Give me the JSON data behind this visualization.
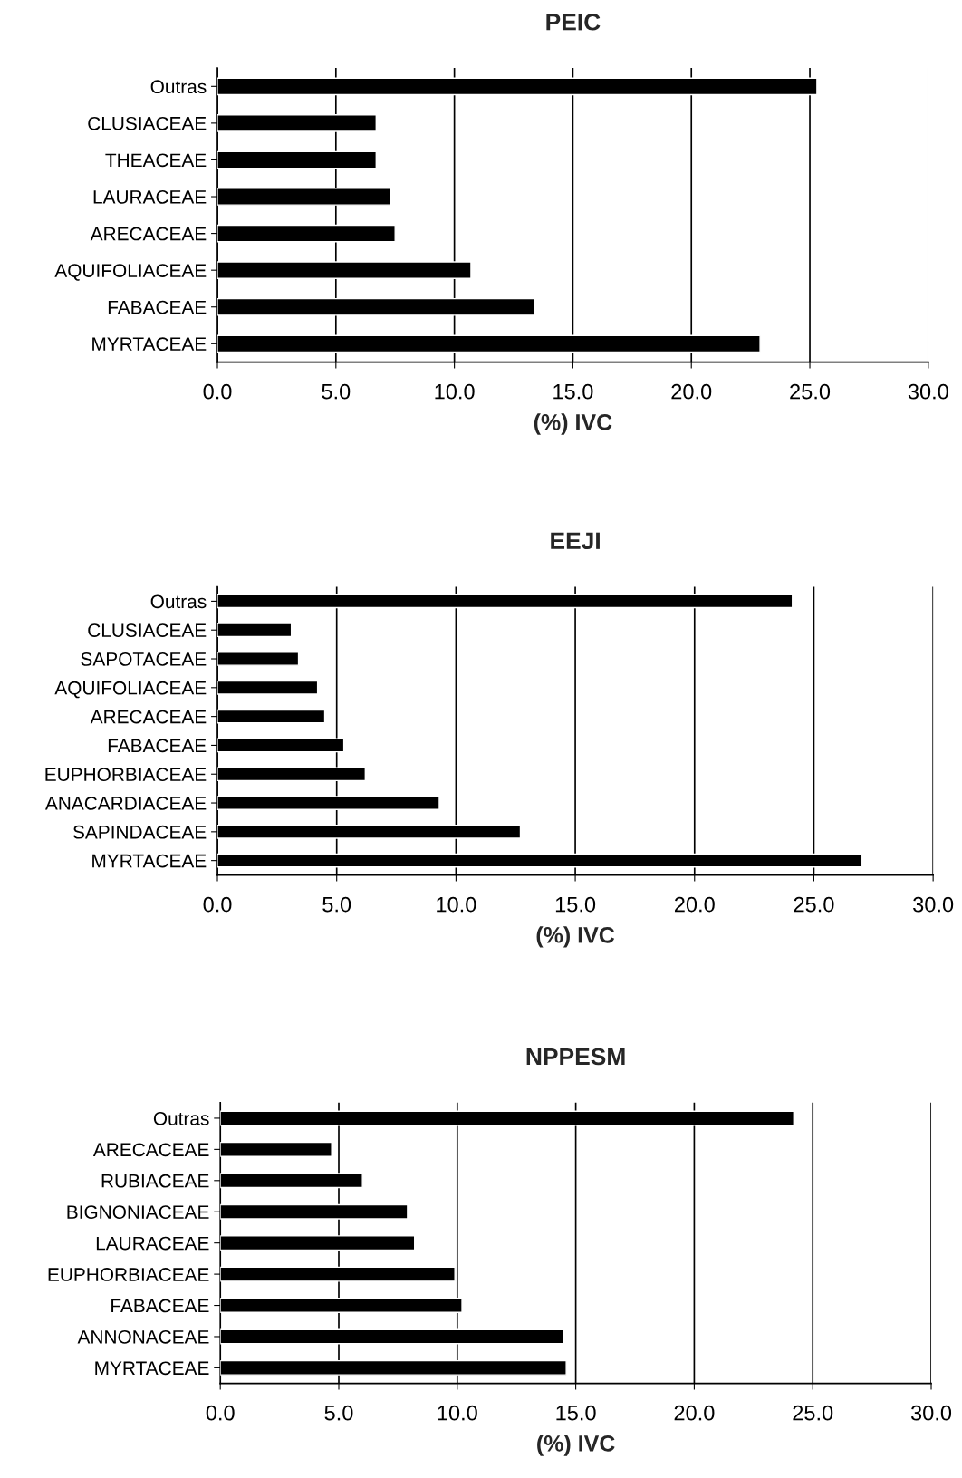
{
  "chart_data": [
    {
      "type": "bar",
      "orientation": "horizontal",
      "title": "PEIC",
      "xlabel": "(%) IVC",
      "categories": [
        "Outras",
        "CLUSIACEAE",
        "THEACEAE",
        "LAURACEAE",
        "ARECACEAE",
        "AQUIFOLIACEAE",
        "FABACEAE",
        "MYRTACEAE"
      ],
      "values": [
        25.3,
        6.7,
        6.7,
        7.3,
        7.5,
        10.7,
        13.4,
        22.9
      ],
      "color": "#000000",
      "xlim": [
        0,
        30
      ],
      "xticks": [
        {
          "value": 0,
          "label": "0.0"
        },
        {
          "value": 5,
          "label": "5.0"
        },
        {
          "value": 10,
          "label": "10.0"
        },
        {
          "value": 15,
          "label": "15.0"
        },
        {
          "value": 20,
          "label": "20.0"
        },
        {
          "value": 25,
          "label": "25.0"
        },
        {
          "value": 30,
          "label": "30.0"
        }
      ],
      "grid": "x"
    },
    {
      "type": "bar",
      "orientation": "horizontal",
      "title": "EEJI",
      "xlabel": "(%) IVC",
      "categories": [
        "Outras",
        "CLUSIACEAE",
        "SAPOTACEAE",
        "AQUIFOLIACEAE",
        "ARECACEAE",
        "FABACEAE",
        "EUPHORBIACEAE",
        "ANACARDIACEAE",
        "SAPINDACEAE",
        "MYRTACEAE"
      ],
      "values": [
        24.1,
        3.1,
        3.4,
        4.2,
        4.5,
        5.3,
        6.2,
        9.3,
        12.7,
        27.0
      ],
      "color": "#000000",
      "xlim": [
        0,
        30
      ],
      "xticks": [
        {
          "value": 0,
          "label": "0.0"
        },
        {
          "value": 5,
          "label": "5.0"
        },
        {
          "value": 10,
          "label": "10.0"
        },
        {
          "value": 15,
          "label": "15.0"
        },
        {
          "value": 20,
          "label": "20.0"
        },
        {
          "value": 25,
          "label": "25.0"
        },
        {
          "value": 30,
          "label": "30.0"
        }
      ],
      "grid": "x"
    },
    {
      "type": "bar",
      "orientation": "horizontal",
      "title": "NPPESM",
      "xlabel": "(%) IVC",
      "categories": [
        "Outras",
        "ARECACEAE",
        "RUBIACEAE",
        "BIGNONIACEAE",
        "LAURACEAE",
        "EUPHORBIACEAE",
        "FABACEAE",
        "ANNONACEAE",
        "MYRTACEAE"
      ],
      "values": [
        24.2,
        4.7,
        6.0,
        7.9,
        8.2,
        9.9,
        10.2,
        14.5,
        14.6
      ],
      "color": "#000000",
      "xlim": [
        0,
        30
      ],
      "xticks": [
        {
          "value": 0,
          "label": "0.0"
        },
        {
          "value": 5,
          "label": "5.0"
        },
        {
          "value": 10,
          "label": "10.0"
        },
        {
          "value": 15,
          "label": "15.0"
        },
        {
          "value": 20,
          "label": "20.0"
        },
        {
          "value": 25,
          "label": "25.0"
        },
        {
          "value": 30,
          "label": "30.0"
        }
      ],
      "grid": "x"
    }
  ]
}
